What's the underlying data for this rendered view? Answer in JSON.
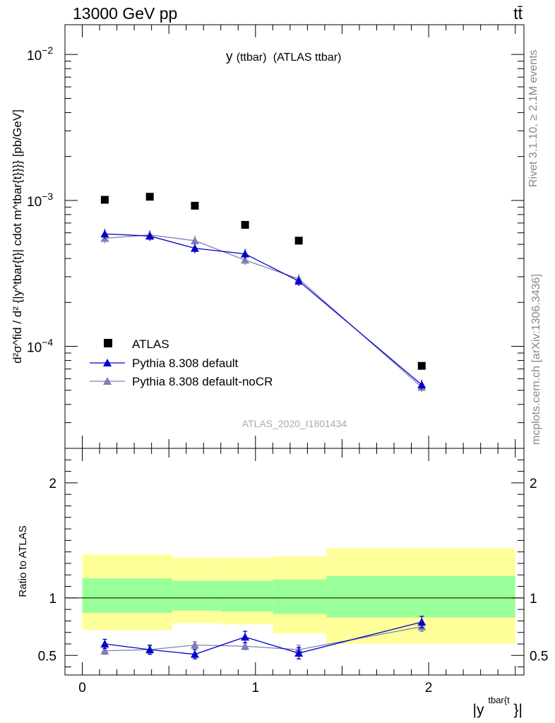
{
  "header": {
    "energy_label": "13000 GeV pp",
    "process_label": "tt̄"
  },
  "side_labels": {
    "rivet": "Rivet 3.1.10, ≥ 2.1M events",
    "mcplots": "mcplots.cern.ch [arXiv:1306.3436]"
  },
  "chart_data": [
    {
      "type": "scatter",
      "panel": "main",
      "title_main": "y",
      "title_paren": "(ttbar)",
      "title_rest": "(ATLAS ttbar)",
      "watermark": "ATLAS_2020_I1801434",
      "ylabel": "d²σ^fid / d² {|y^tbar{t}| cdot m^tbar{t}}}} [pb/GeV]",
      "yscale": "log",
      "ylim": [
        2e-05,
        0.016
      ],
      "xlim": [
        -0.1,
        2.55
      ],
      "y_ticks": [
        {
          "value": 0.0001,
          "base": "10",
          "exp": "−4"
        },
        {
          "value": 0.001,
          "base": "10",
          "exp": "−3"
        },
        {
          "value": 0.01,
          "base": "10",
          "exp": "−2"
        }
      ],
      "x": [
        0.13,
        0.39,
        0.65,
        0.94,
        1.25,
        1.96
      ],
      "legend_position": "lower-left",
      "series": [
        {
          "name": "ATLAS",
          "color": "#000000",
          "marker": "square",
          "values": [
            0.00101,
            0.00106,
            0.00092,
            0.00068,
            0.00053,
            7.35e-05
          ]
        },
        {
          "name": "Pythia 8.308 default",
          "color": "#0000cc",
          "marker": "triangle",
          "values": [
            0.00059,
            0.00057,
            0.00047,
            0.00043,
            0.00028,
            5.45e-05
          ]
        },
        {
          "name": "Pythia 8.308 default-noCR",
          "color": "#7f7fb3",
          "marker": "triangle",
          "values": [
            0.00055,
            0.00058,
            0.00053,
            0.00039,
            0.00029,
            5.25e-05
          ]
        }
      ]
    },
    {
      "type": "line",
      "panel": "ratio",
      "ylabel": "Ratio to ATLAS",
      "xlabel_base": "|y",
      "xlabel_sup": "tbar{t",
      "xlabel_end": "}|",
      "ylim": [
        0.33,
        2.3
      ],
      "xlim": [
        -0.1,
        2.55
      ],
      "y_tick_labels": [
        "0.5",
        "1",
        "2"
      ],
      "y_tick_values": [
        0.5,
        1,
        2
      ],
      "x_tick_labels": [
        "0",
        "1",
        "2"
      ],
      "x_tick_values": [
        0,
        1,
        2
      ],
      "band_edges": [
        0,
        0.52,
        0.8,
        1.1,
        1.41,
        2.5
      ],
      "band_yellow": [
        [
          0.72,
          1.38
        ],
        [
          0.78,
          1.35
        ],
        [
          0.77,
          1.35
        ],
        [
          0.69,
          1.36
        ],
        [
          0.6,
          1.43
        ]
      ],
      "band_green": [
        [
          0.87,
          1.17
        ],
        [
          0.89,
          1.15
        ],
        [
          0.88,
          1.15
        ],
        [
          0.86,
          1.16
        ],
        [
          0.83,
          1.19
        ]
      ],
      "x": [
        0.13,
        0.39,
        0.65,
        0.94,
        1.25,
        1.96
      ],
      "series": [
        {
          "name": "Pythia 8.308 default",
          "color": "#0000cc",
          "values": [
            0.6,
            0.55,
            0.51,
            0.66,
            0.52,
            0.79
          ],
          "errors": [
            0.04,
            0.04,
            0.04,
            0.05,
            0.05,
            0.05
          ]
        },
        {
          "name": "Pythia 8.308 default-noCR",
          "color": "#7f7fb3",
          "values": [
            0.54,
            0.55,
            0.59,
            0.58,
            0.55,
            0.75
          ],
          "errors": [
            0.03,
            0.03,
            0.03,
            0.03,
            0.04,
            0.04
          ]
        }
      ]
    }
  ]
}
